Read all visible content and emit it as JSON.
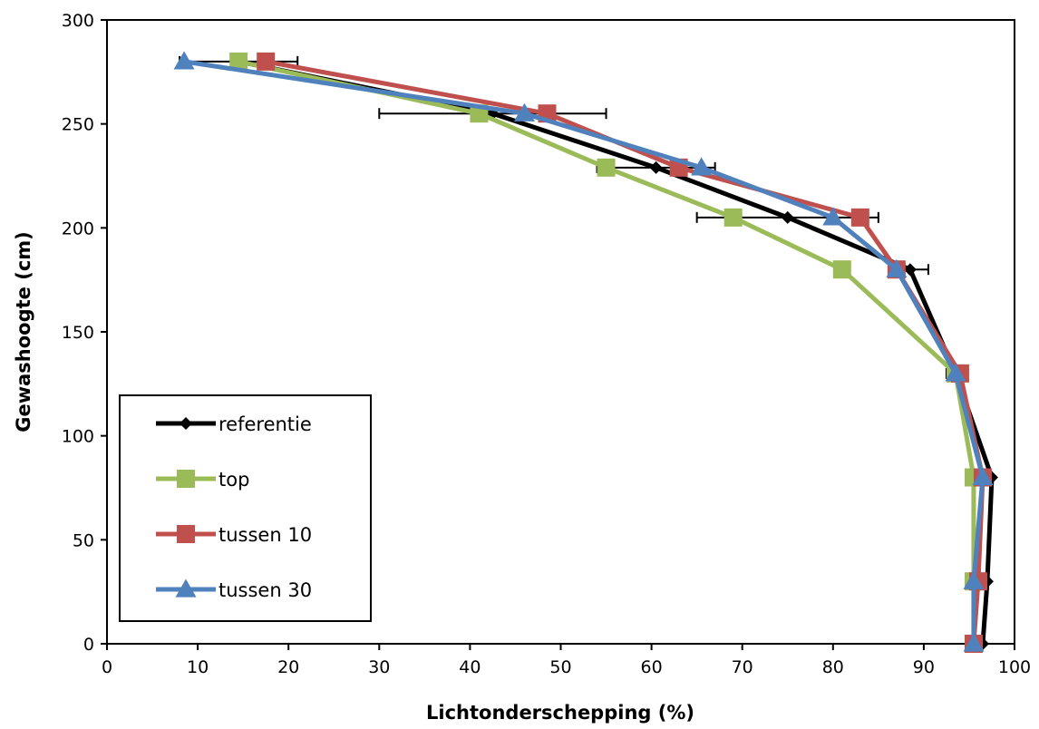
{
  "chart_data": {
    "type": "line",
    "xlabel": "Lichtonderschepping (%)",
    "ylabel": "Gewashoogte (cm)",
    "xlim": [
      0,
      100
    ],
    "ylim": [
      0,
      300
    ],
    "x_ticks": [
      "0",
      "10",
      "20",
      "30",
      "40",
      "50",
      "60",
      "70",
      "80",
      "90",
      "100"
    ],
    "y_ticks": [
      "0",
      "50",
      "100",
      "150",
      "200",
      "250",
      "300"
    ],
    "grid": false,
    "legend_position": "lower-left",
    "series": [
      {
        "name": "referentie",
        "color": "#000000",
        "marker": "diamond",
        "points": [
          [
            14.5,
            280
          ],
          [
            42.5,
            255
          ],
          [
            60.5,
            229
          ],
          [
            75,
            205
          ],
          [
            88.5,
            180
          ],
          [
            93.5,
            130
          ],
          [
            97.5,
            80
          ],
          [
            97,
            30
          ],
          [
            96.5,
            0
          ]
        ],
        "xerr": [
          6.5,
          12.5,
          6.5,
          10,
          2,
          1,
          0,
          0,
          0
        ]
      },
      {
        "name": "top",
        "color": "#9bbb59",
        "marker": "square",
        "points": [
          [
            14.5,
            280
          ],
          [
            41,
            255
          ],
          [
            55,
            229
          ],
          [
            69,
            205
          ],
          [
            81,
            180
          ],
          [
            93.5,
            130
          ],
          [
            95.5,
            80
          ],
          [
            95.5,
            30
          ],
          [
            95.5,
            0
          ]
        ],
        "xerr": [
          0,
          0,
          0,
          0,
          0,
          0,
          0,
          0,
          0
        ]
      },
      {
        "name": "tussen 10",
        "color": "#c0504d",
        "marker": "square",
        "points": [
          [
            17.5,
            280
          ],
          [
            48.5,
            255
          ],
          [
            63,
            229
          ],
          [
            83,
            205
          ],
          [
            87,
            180
          ],
          [
            94,
            130
          ],
          [
            96.5,
            80
          ],
          [
            96,
            30
          ],
          [
            95.5,
            0
          ]
        ],
        "xerr": [
          0,
          0,
          0,
          0,
          0,
          0,
          0,
          0,
          0
        ]
      },
      {
        "name": "tussen 30",
        "color": "#4f81bd",
        "marker": "triangle",
        "points": [
          [
            8.5,
            280
          ],
          [
            46,
            255
          ],
          [
            65.5,
            229
          ],
          [
            80,
            205
          ],
          [
            87,
            180
          ],
          [
            93.5,
            130
          ],
          [
            96.5,
            80
          ],
          [
            95.5,
            30
          ],
          [
            95.5,
            0
          ]
        ],
        "xerr": [
          0,
          0,
          0,
          0,
          0,
          0,
          0,
          0,
          0
        ]
      }
    ]
  }
}
